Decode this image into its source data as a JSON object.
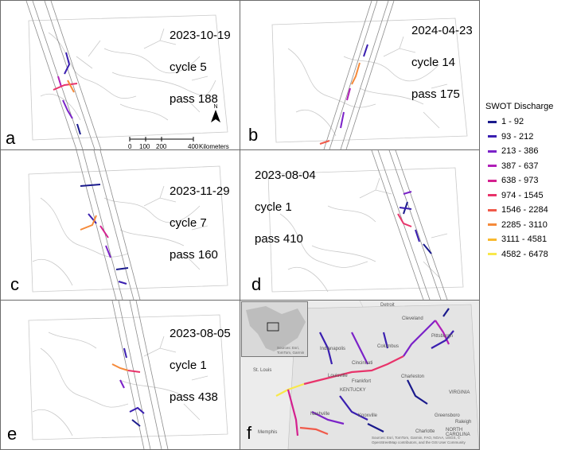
{
  "panels": [
    {
      "id": "a",
      "letter": "a",
      "date": "2023-10-19",
      "cycle": "cycle 5",
      "pass": "pass 188"
    },
    {
      "id": "b",
      "letter": "b",
      "date": "2024-04-23",
      "cycle": "cycle 14",
      "pass": "pass 175"
    },
    {
      "id": "c",
      "letter": "c",
      "date": "2023-11-29",
      "cycle": "cycle 7",
      "pass": "pass 160"
    },
    {
      "id": "d",
      "letter": "d",
      "date": "2023-08-04",
      "cycle": "cycle 1",
      "pass": "pass 410"
    },
    {
      "id": "e",
      "letter": "e",
      "date": "2023-08-05",
      "cycle": "cycle 1",
      "pass": "pass 438"
    },
    {
      "id": "f",
      "letter": "f"
    }
  ],
  "scalebar": {
    "ticks": [
      "0",
      "100",
      "200",
      "400"
    ],
    "unit": "Kilometers"
  },
  "north_arrow": {
    "label": "N",
    "icon": "north-arrow-icon"
  },
  "legend": {
    "title": "SWOT Discharge",
    "classes": [
      {
        "label": "1 - 92",
        "color": "#1a1a8c"
      },
      {
        "label": "93 - 212",
        "color": "#3a1fb0"
      },
      {
        "label": "213 - 386",
        "color": "#7b22c8"
      },
      {
        "label": "387 - 637",
        "color": "#b01fb8"
      },
      {
        "label": "638 - 973",
        "color": "#d4208f"
      },
      {
        "label": "974 - 1545",
        "color": "#e8336a"
      },
      {
        "label": "1546 - 2284",
        "color": "#f05a4a"
      },
      {
        "label": "2285 - 3110",
        "color": "#f58a3a"
      },
      {
        "label": "3111 - 4581",
        "color": "#f8b92f"
      },
      {
        "label": "4582 - 6478",
        "color": "#f8e84a"
      }
    ]
  },
  "panel_f": {
    "cities": [
      "Detroit",
      "Cleveland",
      "Pittsburgh",
      "Indianapolis",
      "Columbus",
      "Cincinnati",
      "St. Louis",
      "Louisville",
      "Frankfort",
      "KENTUCKY",
      "Charleston",
      "VIRGINIA",
      "Nashville",
      "Knoxville",
      "Charlotte",
      "Greensboro",
      "Raleigh",
      "Memphis",
      "NORTH CAROLINA"
    ],
    "attribution": "Sources: Esri, TomTom, Garmin, FAO, NOAA, USGS, © OpenStreetMap contributors, and the GIS User Community",
    "inset_attribution": "Sources: Esri, TomTom, Garmin"
  }
}
